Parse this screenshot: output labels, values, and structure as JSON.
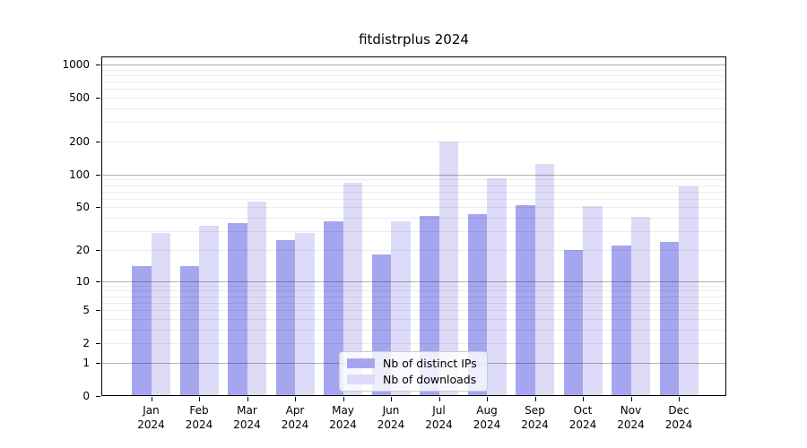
{
  "title": "fitdistrplus 2024",
  "chart_data": {
    "type": "bar",
    "title": "fitdistrplus 2024",
    "y_scale": "log1p",
    "grid": "on",
    "legend_position": "lower-center-inside",
    "categories": [
      "Jan",
      "Feb",
      "Mar",
      "Apr",
      "May",
      "Jun",
      "Jul",
      "Aug",
      "Sep",
      "Oct",
      "Nov",
      "Dec"
    ],
    "category_year": "2024",
    "series": [
      {
        "name": "Nb of distinct IPs",
        "color": "#a6a6f0",
        "values": [
          14,
          14,
          36,
          25,
          37,
          18,
          42,
          43,
          52,
          20,
          22,
          24
        ]
      },
      {
        "name": "Nb of downloads",
        "color": "#dcdcf8",
        "values": [
          29,
          34,
          57,
          29,
          84,
          37,
          200,
          93,
          125,
          51,
          41,
          78
        ]
      }
    ],
    "y_ticks": [
      1000,
      500,
      200,
      100,
      50,
      20,
      10,
      5,
      2,
      1,
      0
    ],
    "ylim": [
      0,
      1183
    ],
    "xlabel": "",
    "ylabel": ""
  },
  "colors": {
    "bar_distinct_ips": "#a6a6f0",
    "bar_downloads": "#dcdcf8",
    "grid_major": "rgba(0,0,0,0.30)",
    "grid_minor": "rgba(0,0,0,0.075)",
    "axis": "#000000",
    "legend_border": "#cccccc",
    "background": "#ffffff"
  }
}
